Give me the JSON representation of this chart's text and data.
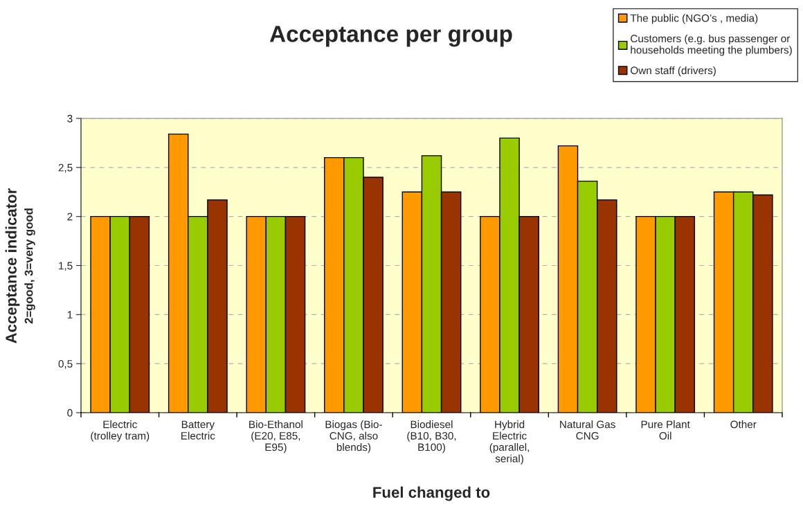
{
  "chart_data": {
    "type": "bar",
    "title": "Acceptance per group",
    "xlabel": "Fuel changed to",
    "ylabel": "Acceptance indicator\n2=good, 3=very good",
    "categories": [
      "Electric\n(trolley tram)",
      "Battery\nElectric",
      "Bio-Ethanol\n(E20, E85,\nE95)",
      "Biogas (Bio-\nCNG, also\nblends)",
      "Biodiesel\n(B10, B30,\nB100)",
      "Hybrid\nElectric\n(parallel,\nserial)",
      "Natural Gas\nCNG",
      "Pure Plant\nOil",
      "Other"
    ],
    "series": [
      {
        "name": "The public (NGO’s , media)",
        "color": "#ff9900",
        "values": [
          2,
          2.84,
          2,
          2.6,
          2.25,
          2,
          2.72,
          2,
          2.25
        ]
      },
      {
        "name": "Customers (e.g. bus passenger or\nhouseholds meeting the plumbers)",
        "color": "#99cc00",
        "values": [
          2,
          2,
          2,
          2.6,
          2.62,
          2.8,
          2.36,
          2,
          2.25
        ]
      },
      {
        "name": "Own staff (drivers)",
        "color": "#993300",
        "values": [
          2,
          2.17,
          2,
          2.4,
          2.25,
          2,
          2.17,
          2,
          2.22
        ]
      }
    ],
    "ylim": [
      0,
      3
    ],
    "yticks": [
      0,
      {
        "value": 0.5,
        "label": "0,5"
      },
      1,
      {
        "value": 1.5,
        "label": "1,5"
      },
      2,
      {
        "value": 2.5,
        "label": "2,5"
      },
      3
    ],
    "grid": "y",
    "legend": "top right"
  }
}
